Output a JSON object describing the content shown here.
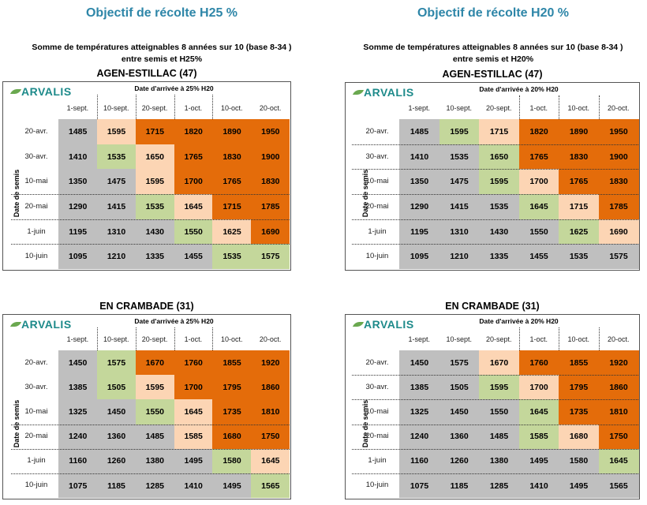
{
  "headings": {
    "left": "Objectif de récolte H25 %",
    "right": "Objectif de récolte H20 %"
  },
  "subtitles": {
    "left": [
      "Somme de températures atteignables 8 années sur 10 (base 8-34 )",
      "entre semis et H25%"
    ],
    "right": [
      "Somme de températures atteignables 8 années sur 10 (base 8-34 )",
      "entre semis et H20%"
    ]
  },
  "legend_colors": {
    "g": "#bfbfbf",
    "p": "#fcd5b4",
    "o": "#e46c0a",
    "v": "#c4d79b"
  },
  "logo": "ARVALIS",
  "tables": [
    {
      "title": "AGEN-ESTILLAC (47)",
      "arrival": "Date d'arrivée à 25% H20",
      "ylabel": "Date de semis",
      "columns": [
        "1-sept.",
        "10-sept.",
        "20-sept.",
        "1-oct.",
        "10-oct.",
        "20-oct."
      ],
      "rows": [
        "20-avr.",
        "30-avr.",
        "10-mai",
        "20-mai",
        "1-juin",
        "10-juin"
      ],
      "values": [
        [
          1485,
          1595,
          1715,
          1820,
          1890,
          1950
        ],
        [
          1410,
          1535,
          1650,
          1765,
          1830,
          1900
        ],
        [
          1350,
          1475,
          1595,
          1700,
          1765,
          1830
        ],
        [
          1290,
          1415,
          1535,
          1645,
          1715,
          1785
        ],
        [
          1195,
          1310,
          1430,
          1550,
          1625,
          1690
        ],
        [
          1095,
          1210,
          1335,
          1455,
          1535,
          1575
        ]
      ],
      "colors": [
        "gpoooo",
        "gvpooo",
        "ggpooo",
        "ggvpoo",
        "gggvpo",
        "ggggvv"
      ]
    },
    {
      "title": "AGEN-ESTILLAC (47)",
      "arrival": "Date d'arrivée à 20% H20",
      "ylabel": "Date de semis",
      "columns": [
        "1-sept.",
        "10-sept.",
        "20-sept.",
        "1-oct.",
        "10-oct.",
        "20-oct."
      ],
      "rows": [
        "20-avr.",
        "30-avr.",
        "10-mai",
        "20-mai",
        "1-juin",
        "10-juin"
      ],
      "values": [
        [
          1485,
          1595,
          1715,
          1820,
          1890,
          1950
        ],
        [
          1410,
          1535,
          1650,
          1765,
          1830,
          1900
        ],
        [
          1350,
          1475,
          1595,
          1700,
          1765,
          1830
        ],
        [
          1290,
          1415,
          1535,
          1645,
          1715,
          1785
        ],
        [
          1195,
          1310,
          1430,
          1550,
          1625,
          1690
        ],
        [
          1095,
          1210,
          1335,
          1455,
          1535,
          1575
        ]
      ],
      "colors": [
        "gvpooo",
        "ggvooo",
        "ggvpoo",
        "gggvpo",
        "ggggvp",
        "gggggg"
      ]
    },
    {
      "title": "EN CRAMBADE (31)",
      "arrival": "Date d'arrivée à 25% H20",
      "ylabel": "Date de semis",
      "columns": [
        "1-sept.",
        "10-sept.",
        "20-sept.",
        "1-oct.",
        "10-oct.",
        "20-oct."
      ],
      "rows": [
        "20-avr.",
        "30-avr.",
        "10-mai",
        "20-mai",
        "1-juin",
        "10-juin"
      ],
      "values": [
        [
          1450,
          1575,
          1670,
          1760,
          1855,
          1920
        ],
        [
          1385,
          1505,
          1595,
          1700,
          1795,
          1860
        ],
        [
          1325,
          1450,
          1550,
          1645,
          1735,
          1810
        ],
        [
          1240,
          1360,
          1485,
          1585,
          1680,
          1750
        ],
        [
          1160,
          1260,
          1380,
          1495,
          1580,
          1645
        ],
        [
          1075,
          1185,
          1285,
          1410,
          1495,
          1565
        ]
      ],
      "colors": [
        "gvoooo",
        "gvpooo",
        "ggvpoo",
        "gggpoo",
        "ggggvp",
        "gggggv"
      ]
    },
    {
      "title": "EN CRAMBADE (31)",
      "arrival": "Date d'arrivée à 20% H20",
      "ylabel": "Date de semis",
      "columns": [
        "1-sept.",
        "10-sept.",
        "20-sept.",
        "1-oct.",
        "10-oct.",
        "20-oct."
      ],
      "rows": [
        "20-avr.",
        "30-avr.",
        "10-mai",
        "20-mai",
        "1-juin",
        "10-juin"
      ],
      "values": [
        [
          1450,
          1575,
          1670,
          1760,
          1855,
          1920
        ],
        [
          1385,
          1505,
          1595,
          1700,
          1795,
          1860
        ],
        [
          1325,
          1450,
          1550,
          1645,
          1735,
          1810
        ],
        [
          1240,
          1360,
          1485,
          1585,
          1680,
          1750
        ],
        [
          1160,
          1260,
          1380,
          1495,
          1580,
          1645
        ],
        [
          1075,
          1185,
          1285,
          1410,
          1495,
          1565
        ]
      ],
      "colors": [
        "ggpooo",
        "ggvpoo",
        "gggvoo",
        "gggvpo",
        "gggggv",
        "gggggg"
      ]
    }
  ]
}
